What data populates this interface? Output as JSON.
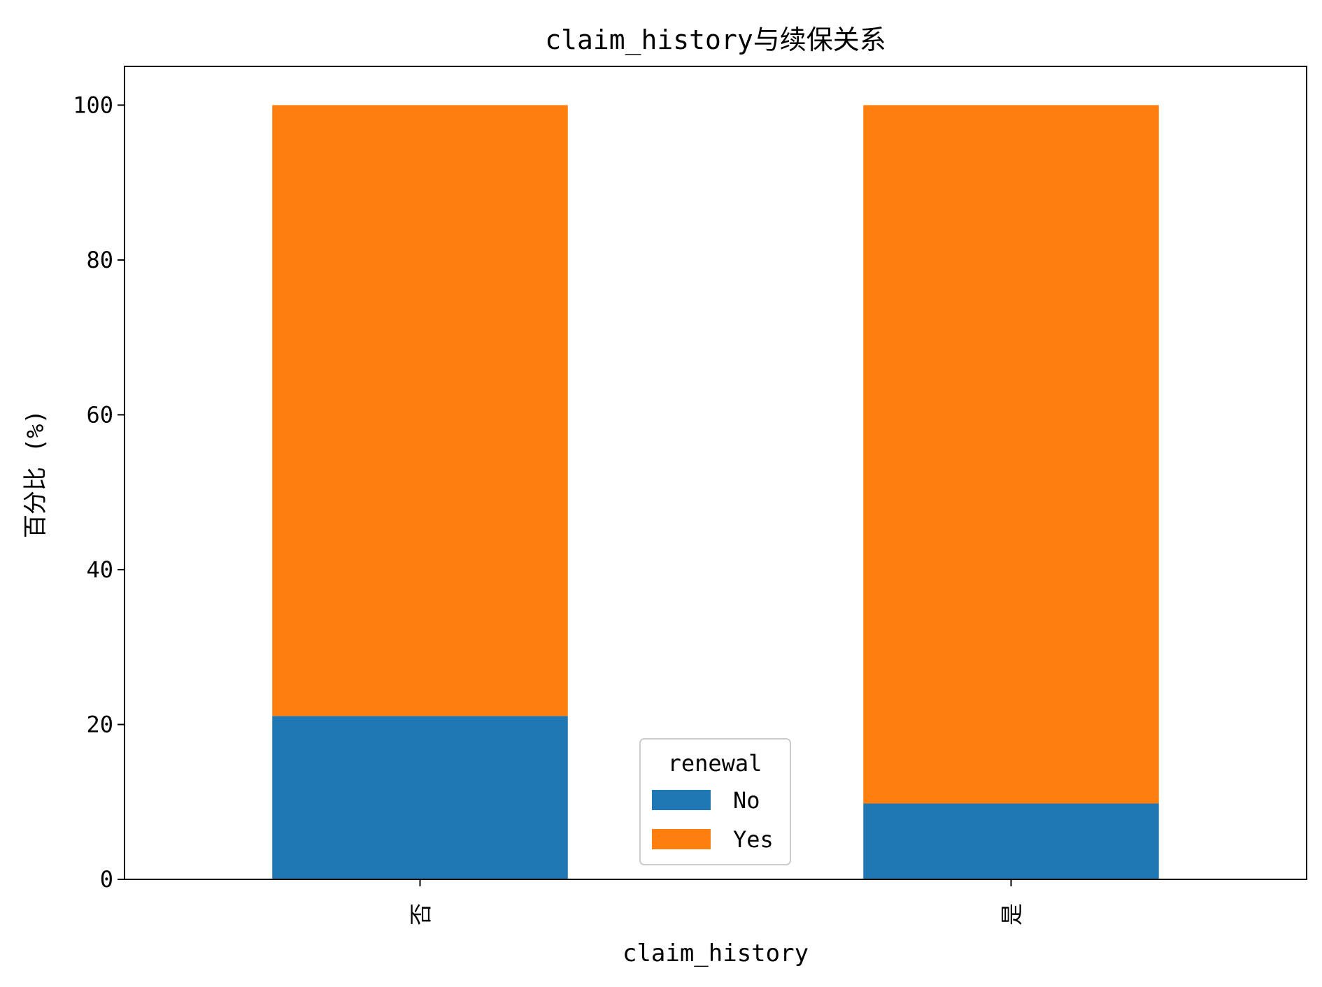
{
  "chart_data": {
    "type": "bar",
    "stacked": true,
    "title": "claim_history与续保关系",
    "xlabel": "claim_history",
    "ylabel": "百分比 (%)",
    "categories": [
      "否",
      "是"
    ],
    "series": [
      {
        "name": "No",
        "values": [
          21.1,
          9.8
        ],
        "color": "#1f77b4"
      },
      {
        "name": "Yes",
        "values": [
          78.9,
          90.2
        ],
        "color": "#ff7f0e"
      }
    ],
    "ylim": [
      0,
      105
    ],
    "yticks": [
      0,
      20,
      40,
      60,
      80,
      100
    ],
    "grid": false,
    "legend": {
      "title": "renewal",
      "position": "bottom-center"
    }
  }
}
